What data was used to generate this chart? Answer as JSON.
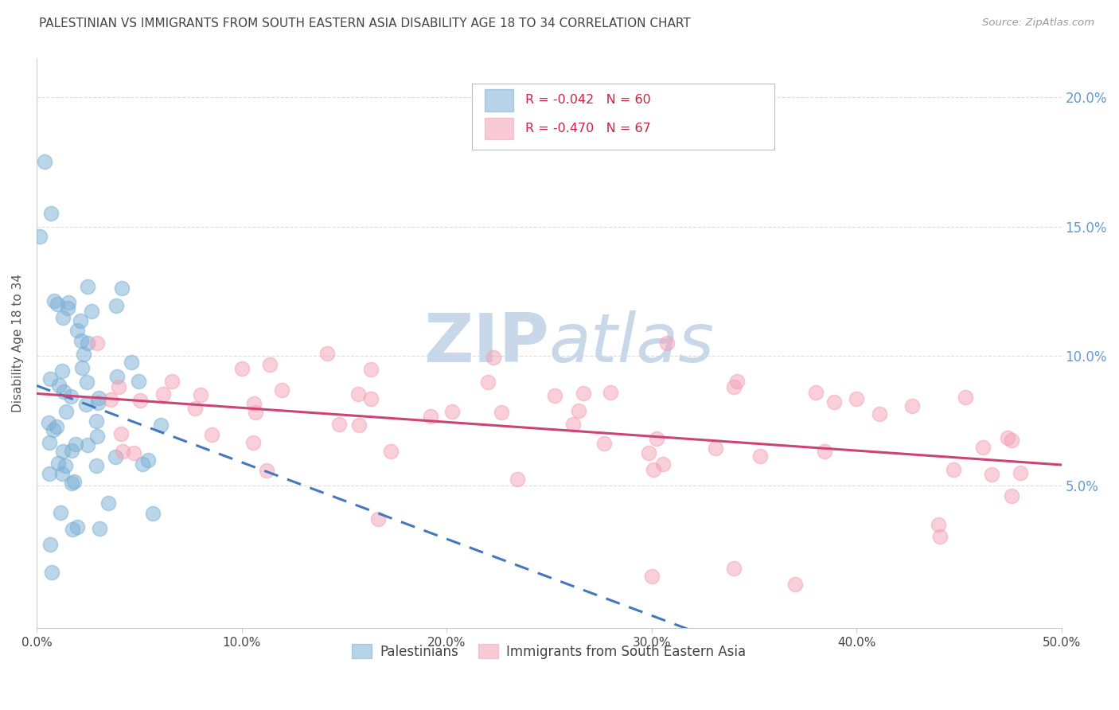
{
  "title": "PALESTINIAN VS IMMIGRANTS FROM SOUTH EASTERN ASIA DISABILITY AGE 18 TO 34 CORRELATION CHART",
  "source": "Source: ZipAtlas.com",
  "ylabel": "Disability Age 18 to 34",
  "ylabel_right_ticks": [
    "20.0%",
    "15.0%",
    "10.0%",
    "5.0%"
  ],
  "ylabel_right_vals": [
    0.2,
    0.15,
    0.1,
    0.05
  ],
  "xlim": [
    0.0,
    0.5
  ],
  "ylim": [
    -0.005,
    0.215
  ],
  "series1_label": "Palestinians",
  "series1_R": "-0.042",
  "series1_N": "60",
  "series1_color": "#7BAFD4",
  "series1_line_color": "#4477BB",
  "series2_label": "Immigrants from South Eastern Asia",
  "series2_R": "-0.470",
  "series2_N": "67",
  "series2_color": "#F4A0B5",
  "series2_line_color": "#CC4477",
  "watermark_zip": "ZIP",
  "watermark_atlas": "atlas",
  "watermark_color": "#C8D8E8",
  "background_color": "#FFFFFF",
  "grid_color": "#DDDDDD",
  "title_color": "#444444",
  "axis_label_color": "#6699CC",
  "legend_R_color": "#CC2244"
}
